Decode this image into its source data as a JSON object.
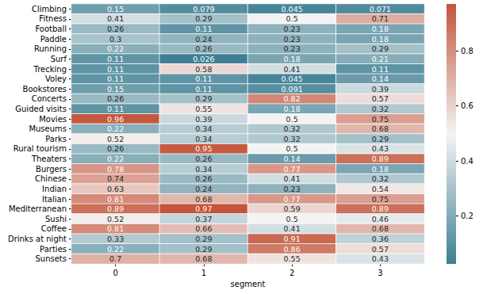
{
  "chart_data": {
    "type": "heatmap",
    "x_label": "segment",
    "x": [
      "0",
      "1",
      "2",
      "3"
    ],
    "y": [
      "Climbing",
      "Fitness",
      "Football",
      "Paddle",
      "Running",
      "Surf",
      "Trecking",
      "Voley",
      "Bookstores",
      "Concerts",
      "Guided visits",
      "Movies",
      "Museums",
      "Parks",
      "Rural tourism",
      "Theaters",
      "Burgers",
      "Chinese",
      "Indian",
      "Italian",
      "Mediterranean",
      "Sushi",
      "Coffee",
      "Drinks at night",
      "Parties",
      "Sunsets"
    ],
    "values": [
      [
        0.15,
        0.079,
        0.045,
        0.071
      ],
      [
        0.41,
        0.29,
        0.5,
        0.71
      ],
      [
        0.26,
        0.11,
        0.23,
        0.18
      ],
      [
        0.3,
        0.24,
        0.23,
        0.18
      ],
      [
        0.22,
        0.26,
        0.23,
        0.29
      ],
      [
        0.11,
        0.026,
        0.18,
        0.21
      ],
      [
        0.11,
        0.58,
        0.41,
        0.11
      ],
      [
        0.11,
        0.11,
        0.045,
        0.14
      ],
      [
        0.15,
        0.11,
        0.091,
        0.39
      ],
      [
        0.26,
        0.29,
        0.82,
        0.57
      ],
      [
        0.11,
        0.55,
        0.18,
        0.32
      ],
      [
        0.96,
        0.39,
        0.5,
        0.75
      ],
      [
        0.22,
        0.34,
        0.32,
        0.68
      ],
      [
        0.52,
        0.34,
        0.32,
        0.29
      ],
      [
        0.26,
        0.95,
        0.5,
        0.43
      ],
      [
        0.22,
        0.26,
        0.14,
        0.89
      ],
      [
        0.78,
        0.34,
        0.77,
        0.18
      ],
      [
        0.74,
        0.26,
        0.41,
        0.32
      ],
      [
        0.63,
        0.24,
        0.23,
        0.54
      ],
      [
        0.81,
        0.68,
        0.77,
        0.75
      ],
      [
        0.89,
        0.97,
        0.59,
        0.89
      ],
      [
        0.52,
        0.37,
        0.5,
        0.46
      ],
      [
        0.81,
        0.66,
        0.41,
        0.68
      ],
      [
        0.33,
        0.29,
        0.91,
        0.36
      ],
      [
        0.22,
        0.29,
        0.86,
        0.57
      ],
      [
        0.7,
        0.68,
        0.55,
        0.43
      ]
    ],
    "data_labels": true,
    "colorbar_range": [
      0.026,
      0.97
    ],
    "colorbar_ticks": [
      0.2,
      0.4,
      0.6,
      0.8
    ]
  }
}
